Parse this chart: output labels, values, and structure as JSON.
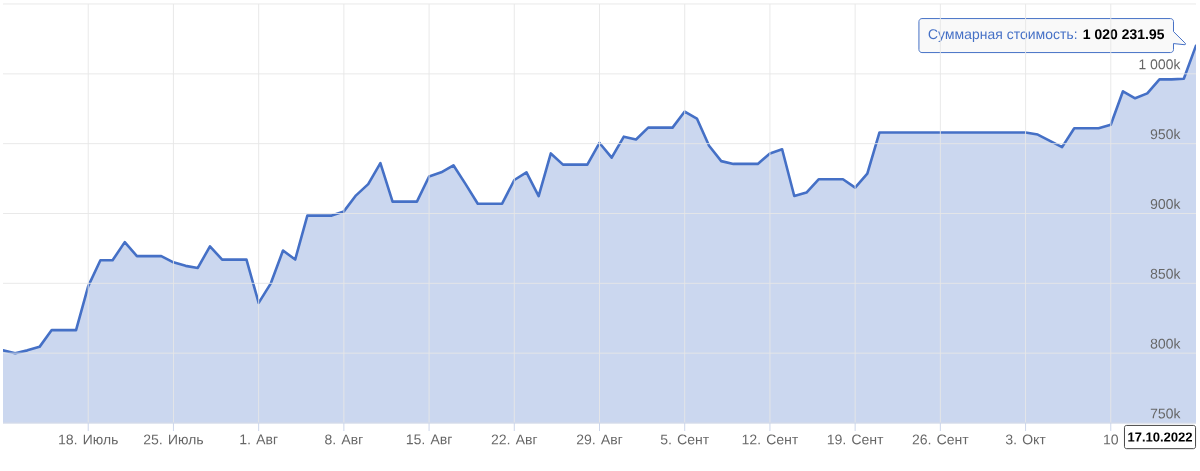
{
  "chart_data": {
    "type": "area",
    "x": [
      "2022-07-11",
      "2022-07-12",
      "2022-07-13",
      "2022-07-14",
      "2022-07-15",
      "2022-07-16",
      "2022-07-17",
      "2022-07-18",
      "2022-07-19",
      "2022-07-20",
      "2022-07-21",
      "2022-07-22",
      "2022-07-23",
      "2022-07-24",
      "2022-07-25",
      "2022-07-26",
      "2022-07-27",
      "2022-07-28",
      "2022-07-29",
      "2022-07-30",
      "2022-07-31",
      "2022-08-01",
      "2022-08-02",
      "2022-08-03",
      "2022-08-04",
      "2022-08-05",
      "2022-08-06",
      "2022-08-07",
      "2022-08-08",
      "2022-08-09",
      "2022-08-10",
      "2022-08-11",
      "2022-08-12",
      "2022-08-13",
      "2022-08-14",
      "2022-08-15",
      "2022-08-16",
      "2022-08-17",
      "2022-08-18",
      "2022-08-19",
      "2022-08-20",
      "2022-08-21",
      "2022-08-22",
      "2022-08-23",
      "2022-08-24",
      "2022-08-25",
      "2022-08-26",
      "2022-08-27",
      "2022-08-28",
      "2022-08-29",
      "2022-08-30",
      "2022-08-31",
      "2022-09-01",
      "2022-09-02",
      "2022-09-03",
      "2022-09-04",
      "2022-09-05",
      "2022-09-06",
      "2022-09-07",
      "2022-09-08",
      "2022-09-09",
      "2022-09-10",
      "2022-09-11",
      "2022-09-12",
      "2022-09-13",
      "2022-09-14",
      "2022-09-15",
      "2022-09-16",
      "2022-09-17",
      "2022-09-18",
      "2022-09-19",
      "2022-09-20",
      "2022-09-21",
      "2022-09-22",
      "2022-09-23",
      "2022-09-24",
      "2022-09-25",
      "2022-09-26",
      "2022-09-27",
      "2022-09-28",
      "2022-09-29",
      "2022-09-30",
      "2022-10-01",
      "2022-10-02",
      "2022-10-03",
      "2022-10-04",
      "2022-10-05",
      "2022-10-06",
      "2022-10-07",
      "2022-10-08",
      "2022-10-09",
      "2022-10-10",
      "2022-10-11",
      "2022-10-12",
      "2022-10-13",
      "2022-10-14",
      "2022-10-15",
      "2022-10-16",
      "2022-10-17"
    ],
    "series": [
      {
        "color": "#4570c6",
        "values": [
          802000,
          800000,
          802000,
          804500,
          816500,
          816500,
          816500,
          848000,
          866500,
          866500,
          879500,
          869500,
          869500,
          869500,
          865000,
          862500,
          861000,
          876500,
          867000,
          867000,
          867000,
          836000,
          850000,
          873500,
          867000,
          898500,
          898500,
          898500,
          901500,
          913000,
          921000,
          936000,
          908500,
          908500,
          908500,
          926500,
          929500,
          934500,
          921000,
          907000,
          907000,
          907000,
          924000,
          929500,
          912500,
          943000,
          935000,
          935000,
          935000,
          950500,
          940000,
          955000,
          953000,
          961500,
          961500,
          961500,
          973000,
          968000,
          948500,
          937500,
          935500,
          935500,
          935500,
          943000,
          946000,
          912500,
          915000,
          924500,
          924500,
          924500,
          918500,
          928500,
          958000,
          958000,
          958000,
          958000,
          958000,
          958000,
          958000,
          958000,
          958000,
          958000,
          958000,
          958000,
          958000,
          956500,
          952000,
          947500,
          961000,
          961000,
          961000,
          963500,
          987500,
          982500,
          986000,
          996000,
          996000,
          996500,
          1020231.95
        ]
      }
    ],
    "xlim": [
      "2022-07-11",
      "2022-10-17"
    ],
    "xticks": [
      {
        "value": "2022-07-18",
        "label": "18. Июль"
      },
      {
        "value": "2022-07-25",
        "label": "25. Июль"
      },
      {
        "value": "2022-08-01",
        "label": "1. Авг"
      },
      {
        "value": "2022-08-08",
        "label": "8. Авг"
      },
      {
        "value": "2022-08-15",
        "label": "15. Авг"
      },
      {
        "value": "2022-08-22",
        "label": "22. Авг"
      },
      {
        "value": "2022-08-29",
        "label": "29. Авг"
      },
      {
        "value": "2022-09-05",
        "label": "5. Сент"
      },
      {
        "value": "2022-09-12",
        "label": "12. Сент"
      },
      {
        "value": "2022-09-19",
        "label": "19. Сент"
      },
      {
        "value": "2022-09-26",
        "label": "26. Сент"
      },
      {
        "value": "2022-10-03",
        "label": "3. Окт"
      },
      {
        "value": "2022-10-10",
        "label": "10"
      }
    ],
    "ylim": [
      750000,
      1050000
    ],
    "yticks": [
      {
        "value": 750000,
        "label": "750k"
      },
      {
        "value": 800000,
        "label": "800k"
      },
      {
        "value": 850000,
        "label": "850k"
      },
      {
        "value": 900000,
        "label": "900k"
      },
      {
        "value": 950000,
        "label": "950k"
      },
      {
        "value": 1000000,
        "label": "1 000k"
      },
      {
        "value": 1050000,
        "label": null
      }
    ],
    "grid": true,
    "annotations": [
      {
        "text": "Суммарная стоимость: **1 020 231.95**",
        "x": "2022-10-17",
        "y": 1020231.95
      },
      "17.10.2022"
    ]
  }
}
